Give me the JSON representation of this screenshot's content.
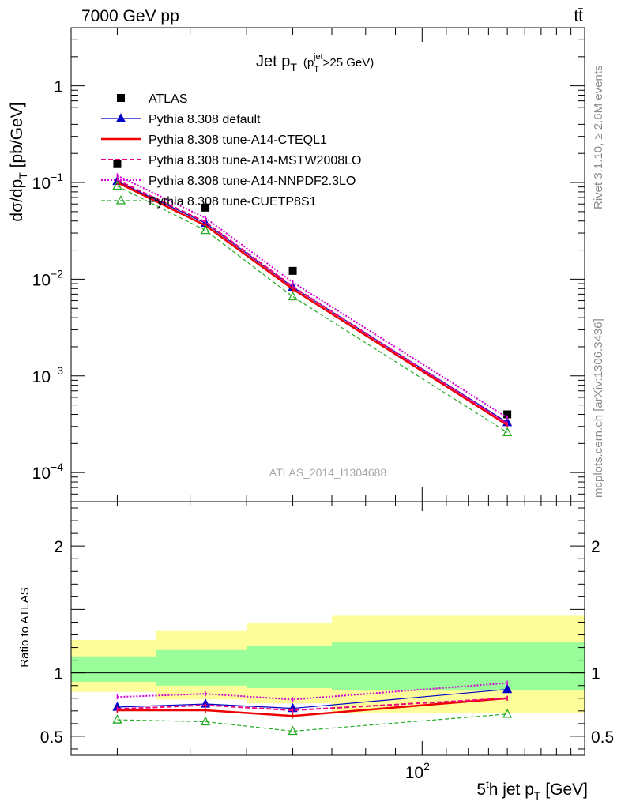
{
  "header": {
    "left": "7000 GeV pp",
    "right": "tt̄"
  },
  "side": {
    "top": "Rivet 3.1.10, ≥ 2.6M events",
    "bottom": "mcplots.cern.ch [arXiv:1306.3436]"
  },
  "chart_data": [
    {
      "type": "line",
      "panel": "main",
      "title": "Jet p_T (p_T^jet > 25 GeV)",
      "title_parts": {
        "main": "Jet p",
        "sub": "T",
        "paren_open": "(p",
        "paren_sup": "jet",
        "paren_sub": "T",
        "paren_close": ">25 GeV)"
      },
      "watermark": "ATLAS_2014_I1304688",
      "ylabel": "dσ/dp_T [pb/GeV]",
      "ylabel_parts": {
        "main": "dσ/dp",
        "sub": "T",
        "unit": " [pb/GeV]"
      },
      "yscale": "log",
      "xscale": "log",
      "xlim": [
        25,
        190
      ],
      "ylim": [
        5e-05,
        4
      ],
      "yticks": [
        {
          "value": 1,
          "base": "1",
          "exp": ""
        },
        {
          "value": 0.1,
          "base": "10",
          "exp": "−1"
        },
        {
          "value": 0.01,
          "base": "10",
          "exp": "−2"
        },
        {
          "value": 0.001,
          "base": "10",
          "exp": "−3"
        },
        {
          "value": 0.0001,
          "base": "10",
          "exp": "−4"
        }
      ],
      "legend_position": "top-left",
      "x": [
        30,
        42.5,
        60,
        140
      ],
      "series": [
        {
          "name": "ATLAS",
          "kind": "data",
          "color": "#000000",
          "marker": "square",
          "values": [
            0.155,
            0.055,
            0.0122,
            0.0004
          ]
        },
        {
          "name": "Pythia 8.308 default",
          "color": "#0000c8",
          "marker": "triangle",
          "dash": "",
          "width": 1.2,
          "values": [
            0.103,
            0.038,
            0.0083,
            0.00033
          ]
        },
        {
          "name": "Pythia 8.308 tune-A14-CTEQL1",
          "color": "#ee0000",
          "marker": "none",
          "dash": "",
          "width": 2.5,
          "values": [
            0.1,
            0.036,
            0.0079,
            0.00031
          ]
        },
        {
          "name": "Pythia 8.308 tune-A14-MSTW2008LO",
          "color": "#ee0080",
          "marker": "none",
          "dash": "6,3",
          "width": 2,
          "values": [
            0.106,
            0.039,
            0.0084,
            0.00032
          ]
        },
        {
          "name": "Pythia 8.308 tune-A14-NNPDF2.3LO",
          "color": "#d400d4",
          "marker": "none",
          "dash": "2,2",
          "width": 2,
          "values": [
            0.118,
            0.043,
            0.0093,
            0.00037
          ]
        },
        {
          "name": "Pythia 8.308 tune-CUETP8S1",
          "color": "#22aa22",
          "marker": "triangle-open",
          "dash": "5,3",
          "width": 1.2,
          "values": [
            0.092,
            0.032,
            0.0066,
            0.00026
          ]
        }
      ]
    },
    {
      "type": "line",
      "panel": "ratio",
      "ylabel": "Ratio to ATLAS",
      "xlabel": "5th jet p_T [GeV]",
      "xlabel_parts": {
        "a": "5",
        "sup": "t",
        "b": "h jet p",
        "sub": "T",
        "unit": " [GeV]"
      },
      "xscale": "log",
      "xlim": [
        25,
        190
      ],
      "xticks": [
        {
          "value": 100,
          "base": "10",
          "exp": "2"
        }
      ],
      "ylim": [
        0.35,
        2.35
      ],
      "yticks": [
        {
          "value": 0.5,
          "label": "0.5"
        },
        {
          "value": 1,
          "label": "1"
        },
        {
          "value": 2,
          "label": "2"
        }
      ],
      "bin_edges": [
        25,
        35,
        50,
        70,
        190
      ],
      "band_outer": [
        [
          0.85,
          1.26
        ],
        [
          0.79,
          1.33
        ],
        [
          0.76,
          1.39
        ],
        [
          0.68,
          1.45
        ]
      ],
      "band_inner": [
        [
          0.93,
          1.13
        ],
        [
          0.9,
          1.18
        ],
        [
          0.88,
          1.21
        ],
        [
          0.86,
          1.24
        ]
      ],
      "band_colors": {
        "outer": "#fdfd99",
        "inner": "#99fd99"
      },
      "x": [
        30,
        42.5,
        60,
        140
      ],
      "series": [
        {
          "name": "Pythia 8.308 default",
          "color": "#0000c8",
          "marker": "triangle",
          "dash": "",
          "width": 1.2,
          "values": [
            0.73,
            0.755,
            0.72,
            0.87
          ]
        },
        {
          "name": "Pythia 8.308 tune-A14-CTEQL1",
          "color": "#ee0000",
          "marker": "none",
          "dash": "",
          "width": 2.5,
          "values": [
            0.705,
            0.705,
            0.66,
            0.8
          ]
        },
        {
          "name": "Pythia 8.308 tune-A14-MSTW2008LO",
          "color": "#ee0080",
          "marker": "none",
          "dash": "6,3",
          "width": 2,
          "values": [
            0.715,
            0.745,
            0.705,
            0.8
          ]
        },
        {
          "name": "Pythia 8.308 tune-A14-NNPDF2.3LO",
          "color": "#d400d4",
          "marker": "none",
          "dash": "2,2",
          "width": 2,
          "values": [
            0.81,
            0.835,
            0.79,
            0.92
          ]
        },
        {
          "name": "Pythia 8.308 tune-CUETP8S1",
          "color": "#22aa22",
          "marker": "triangle-open",
          "dash": "5,3",
          "width": 1.2,
          "values": [
            0.63,
            0.615,
            0.54,
            0.675
          ]
        }
      ]
    }
  ]
}
